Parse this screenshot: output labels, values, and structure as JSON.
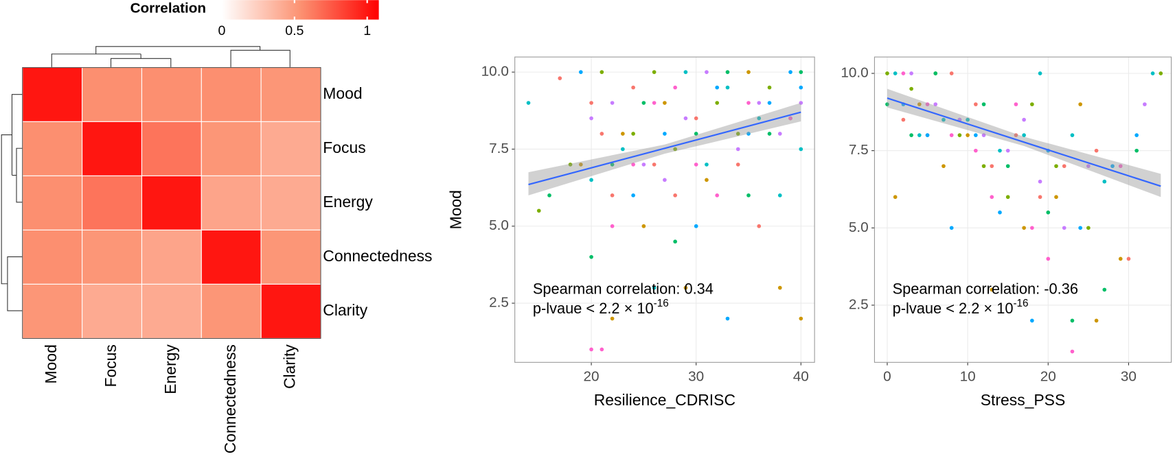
{
  "chart_data": [
    {
      "type": "heatmap",
      "colorbar_title": "Correlation",
      "categories": [
        "Mood",
        "Focus",
        "Energy",
        "Connectedness",
        "Clarity"
      ],
      "values": [
        [
          1,
          0.55,
          0.55,
          0.55,
          0.52
        ],
        [
          0.55,
          1,
          0.65,
          0.52,
          0.42
        ],
        [
          0.55,
          0.65,
          1,
          0.45,
          0.42
        ],
        [
          0.55,
          0.52,
          0.45,
          1,
          0.52
        ],
        [
          0.52,
          0.42,
          0.42,
          0.52,
          1
        ]
      ],
      "colors": [
        "#FFFFFF",
        "#FC9272",
        "#FF0000"
      ],
      "clim": [
        0,
        1.08
      ],
      "colorbar_ticks": [
        0,
        0.5,
        1
      ]
    },
    {
      "type": "scatter",
      "xlabel": "Resilience_CDRISC",
      "ylabel": "Mood",
      "xlim": [
        12.7,
        41.3
      ],
      "ylim": [
        0.58,
        10.49
      ],
      "xticks": [
        20,
        30,
        40
      ],
      "yticks": [
        {
          "value": 10,
          "label": "10.0"
        },
        7.5,
        {
          "value": 5,
          "label": "5.0"
        },
        2.5
      ],
      "grid": true,
      "series": [
        {
          "color": "#F8766D",
          "x": [
            17,
            20,
            21,
            22,
            24,
            26,
            28,
            30,
            34,
            36
          ],
          "values": [
            9.8,
            9,
            8,
            6,
            9.5,
            7,
            6,
            8.5,
            7,
            5
          ]
        },
        {
          "color": "#CD9600",
          "x": [
            19,
            22,
            23,
            25,
            27,
            29,
            31,
            35,
            38,
            40
          ],
          "values": [
            7,
            2,
            8,
            5,
            9,
            3,
            6.5,
            10,
            3,
            2
          ]
        },
        {
          "color": "#7CAE00",
          "x": [
            15,
            18,
            21,
            24,
            26,
            28,
            32,
            34,
            37,
            39
          ],
          "values": [
            5.5,
            7,
            10,
            8,
            10,
            7.5,
            9,
            8,
            9.5,
            8.5
          ]
        },
        {
          "color": "#00BE67",
          "x": [
            16,
            20,
            22,
            25,
            28,
            30,
            33,
            35,
            37,
            40
          ],
          "values": [
            6,
            4,
            7,
            9,
            4.5,
            8,
            10,
            6,
            8,
            10
          ]
        },
        {
          "color": "#00BFC4",
          "x": [
            14,
            20,
            23,
            26,
            29,
            31,
            33,
            36,
            38,
            40
          ],
          "values": [
            9,
            6.5,
            7.5,
            3,
            10,
            7,
            9.5,
            8.5,
            6,
            7.5
          ]
        },
        {
          "color": "#00A9FF",
          "x": [
            19,
            24,
            27,
            30,
            32,
            33,
            35,
            37,
            39,
            40
          ],
          "values": [
            10,
            6,
            8,
            5,
            9.5,
            2,
            8,
            9,
            10,
            9.5
          ]
        },
        {
          "color": "#C77CFF",
          "x": [
            20,
            22,
            25,
            27,
            29,
            31,
            34,
            36,
            38,
            40
          ],
          "values": [
            8.5,
            9,
            7,
            6.5,
            8.5,
            10,
            7.5,
            9,
            8,
            9
          ]
        },
        {
          "color": "#FF61CC",
          "x": [
            20,
            21,
            22,
            24,
            26,
            28,
            30,
            32,
            35,
            39
          ],
          "values": [
            1,
            1,
            5,
            7,
            9,
            9.5,
            7,
            6,
            9,
            8.5
          ]
        }
      ],
      "fit": {
        "color": "#3366FF",
        "x": [
          14,
          40
        ],
        "values": [
          6.35,
          8.7
        ]
      },
      "band": {
        "color": "#999999",
        "x": [
          14,
          27,
          40
        ],
        "lower": [
          6.0,
          7.35,
          8.4
        ],
        "upper": [
          6.75,
          7.65,
          9.0
        ]
      },
      "annotations": [
        "Spearman correlation: 0.34",
        "p-lvaue < 2.2 × 10"
      ],
      "annotation_superscript": "-16"
    },
    {
      "type": "scatter",
      "xlabel": "Stress_PSS",
      "xlim": [
        -1.58,
        35.3
      ],
      "ylim": [
        0.65,
        10.53
      ],
      "xticks": [
        0,
        10,
        20,
        30
      ],
      "yticks": [
        {
          "value": 10,
          "label": "10.0"
        },
        7.5,
        {
          "value": 5,
          "label": "5.0"
        },
        2.5
      ],
      "grid": true,
      "series": [
        {
          "color": "#F8766D",
          "x": [
            2,
            5,
            8,
            11,
            13,
            16,
            19,
            22,
            26,
            30
          ],
          "values": [
            8.5,
            8,
            10,
            9,
            7,
            8,
            6,
            7,
            7.5,
            4
          ]
        },
        {
          "color": "#CD9600",
          "x": [
            1,
            4,
            7,
            10,
            13,
            17,
            21,
            24,
            26,
            29
          ],
          "values": [
            6,
            9,
            7,
            8,
            3,
            5,
            6,
            9,
            2,
            4
          ]
        },
        {
          "color": "#7CAE00",
          "x": [
            0,
            3,
            6,
            9,
            12,
            15,
            18,
            21,
            25,
            34
          ],
          "values": [
            10,
            9.5,
            10,
            8,
            7,
            6,
            9,
            7,
            5,
            10
          ]
        },
        {
          "color": "#00BE67",
          "x": [
            0,
            3,
            6,
            9,
            12,
            15,
            20,
            23,
            27,
            31
          ],
          "values": [
            9,
            8,
            10,
            8.5,
            9,
            7,
            5.5,
            2,
            3,
            7.5
          ]
        },
        {
          "color": "#00BFC4",
          "x": [
            1,
            4,
            7,
            10,
            14,
            17,
            19,
            23,
            27,
            33
          ],
          "values": [
            10,
            8,
            8.5,
            8.5,
            7.5,
            8,
            10,
            8,
            6.5,
            10
          ]
        },
        {
          "color": "#00A9FF",
          "x": [
            2,
            5,
            8,
            11,
            14,
            18,
            20,
            24,
            28,
            31
          ],
          "values": [
            9,
            8,
            5,
            8,
            5.5,
            2,
            7.5,
            5,
            7,
            8
          ]
        },
        {
          "color": "#C77CFF",
          "x": [
            3,
            6,
            9,
            12,
            15,
            17,
            19,
            22,
            25,
            32
          ],
          "values": [
            10,
            9,
            8.5,
            8,
            7.5,
            8.5,
            6.5,
            5,
            7,
            9
          ]
        },
        {
          "color": "#FF61CC",
          "x": [
            2,
            5,
            8,
            11,
            13,
            16,
            18,
            20,
            23,
            29
          ],
          "values": [
            10,
            9,
            8,
            7.5,
            6,
            9,
            5,
            4,
            1,
            7
          ]
        }
      ],
      "fit": {
        "color": "#3366FF",
        "x": [
          0,
          34
        ],
        "values": [
          9.2,
          6.35
        ]
      },
      "band": {
        "color": "#999999",
        "x": [
          0,
          17,
          34
        ],
        "lower": [
          8.9,
          7.65,
          6.0
        ],
        "upper": [
          9.5,
          7.95,
          6.75
        ]
      },
      "annotations": [
        "Spearman correlation: -0.36",
        "p-lvaue < 2.2 × 10"
      ],
      "annotation_superscript": "-16"
    }
  ]
}
